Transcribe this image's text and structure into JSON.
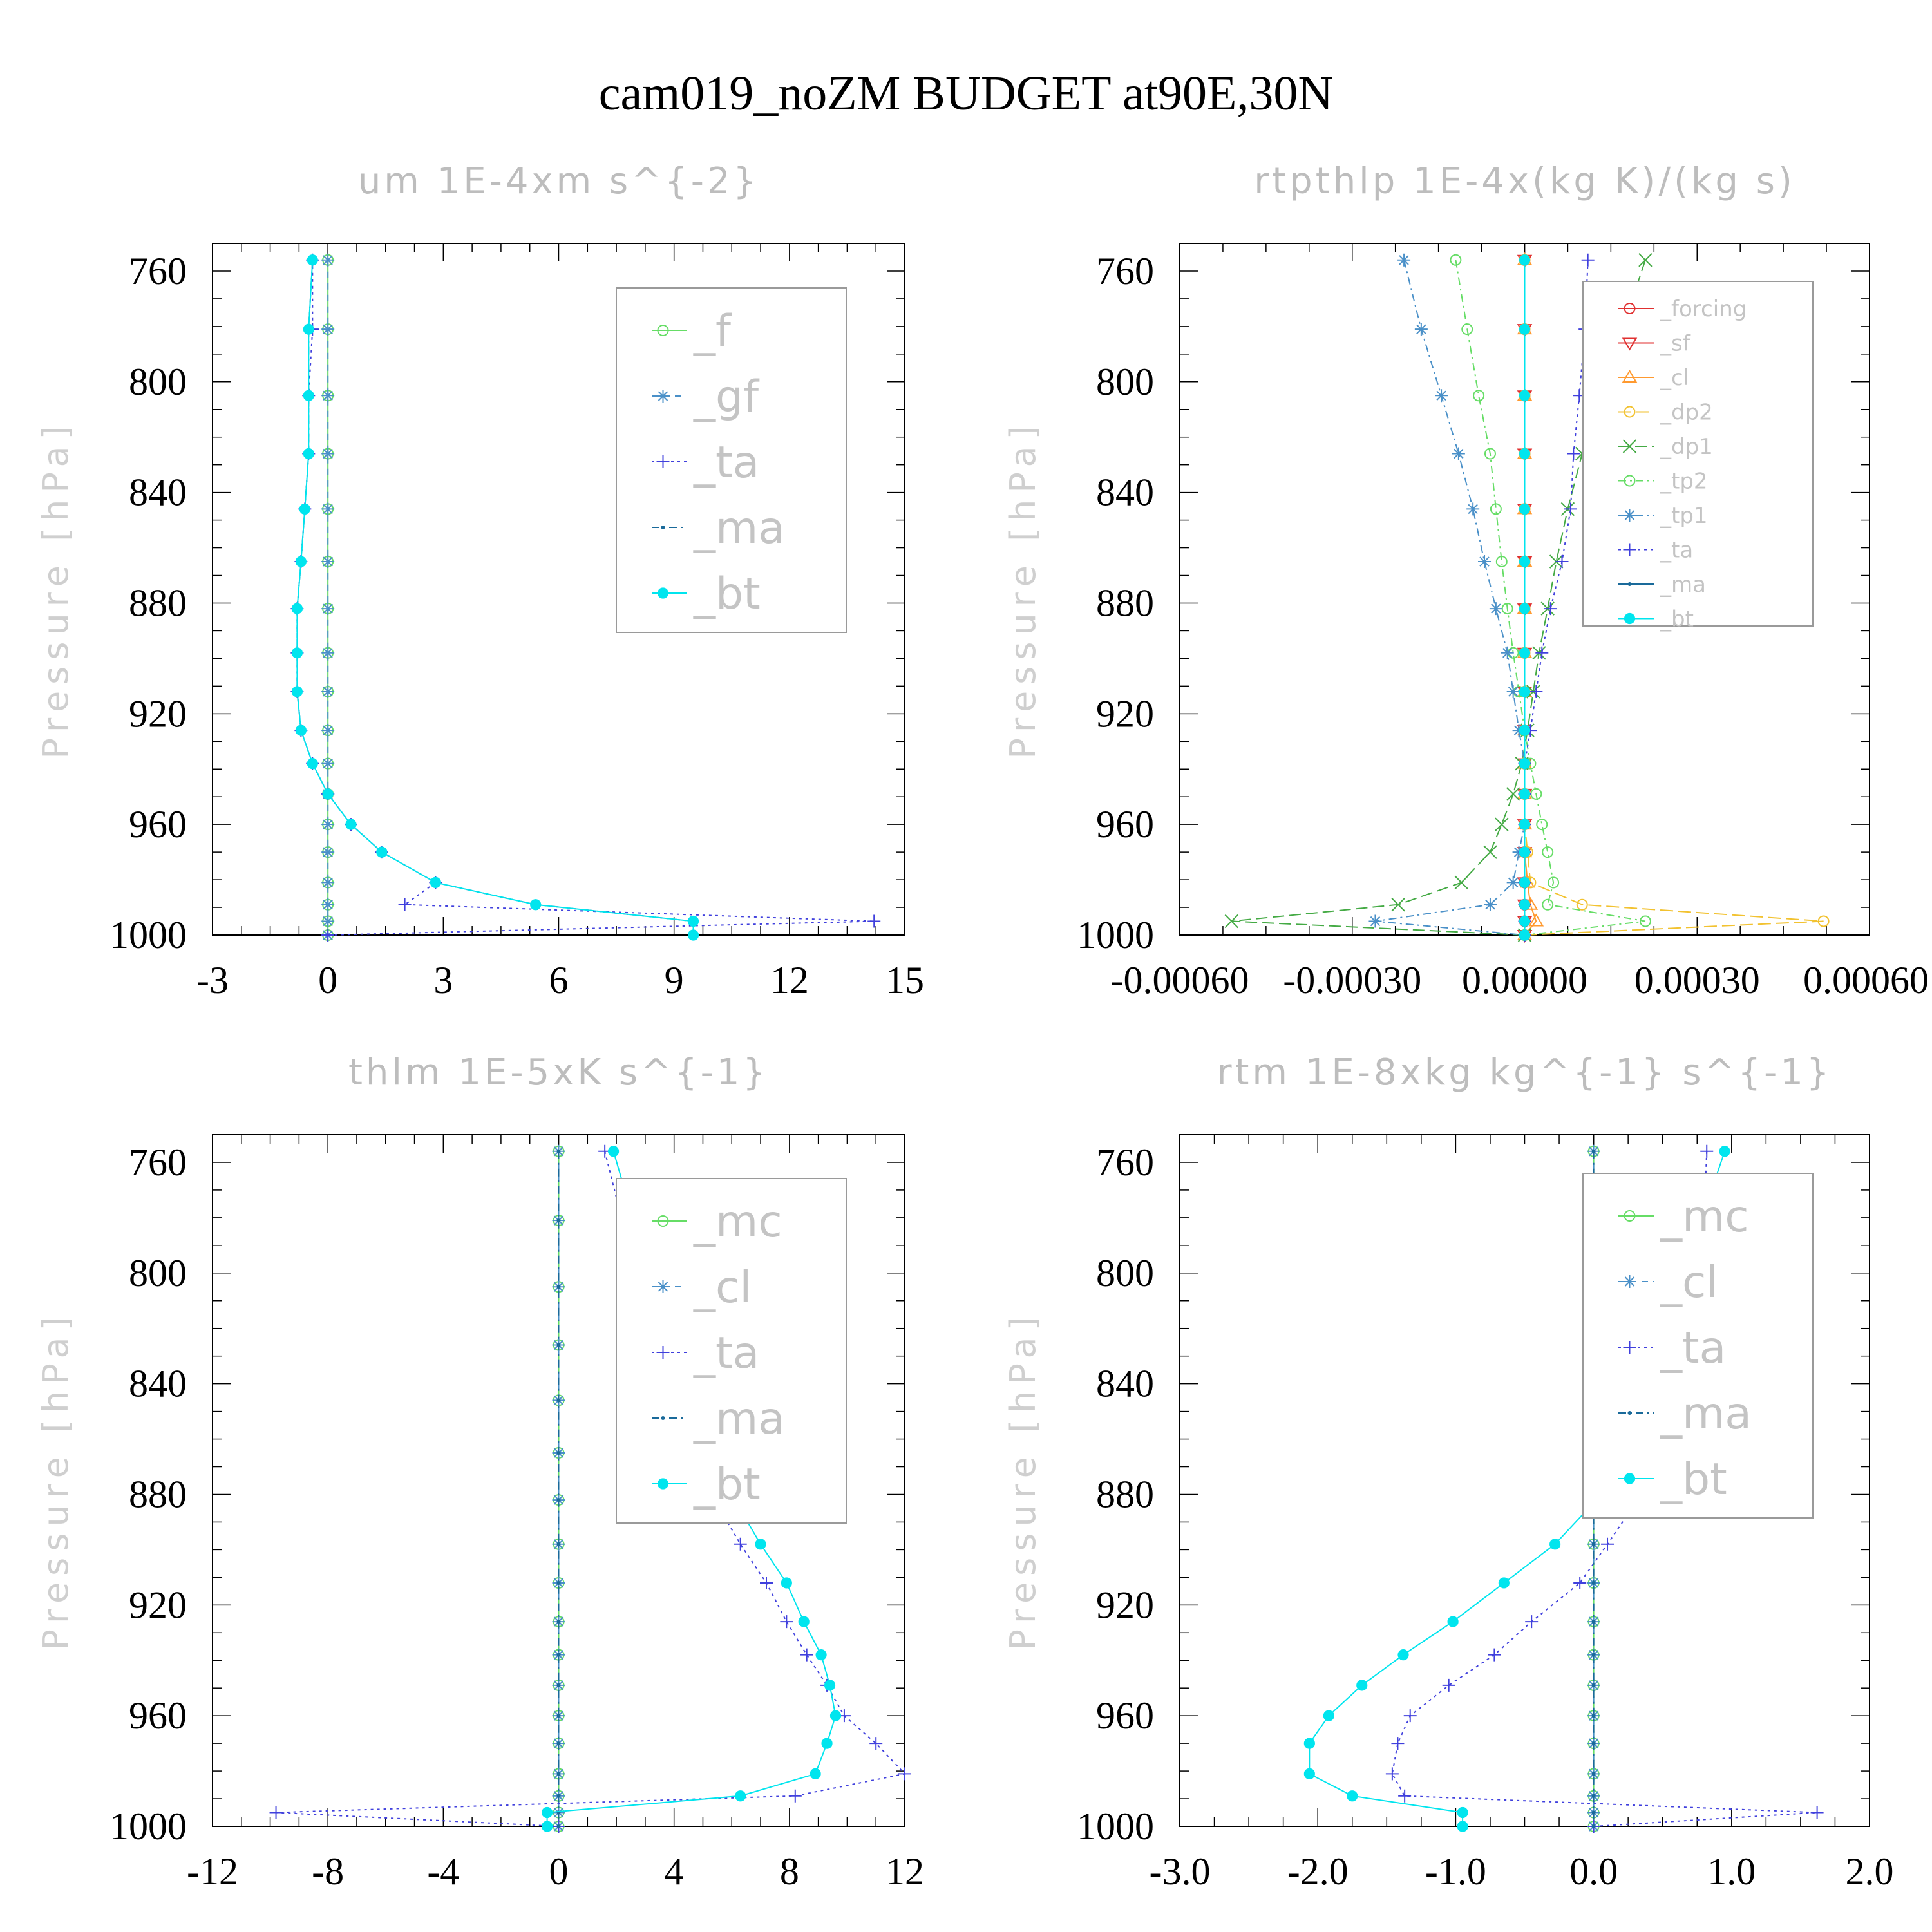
{
  "figure_title": "cam019_noZM  BUDGET at90E,30N",
  "chart_data": [
    {
      "type": "line",
      "title": "um   1E-4xm s^{-2}",
      "ylabel": "Pressure [hPa]",
      "xlabel": "",
      "xlim": [
        -3,
        15
      ],
      "xticks": [
        "-3",
        "0",
        "3",
        "6",
        "9",
        "12",
        "15"
      ],
      "ylim": [
        1000,
        750
      ],
      "yticks": [
        "760",
        "800",
        "840",
        "880",
        "920",
        "960",
        "1000"
      ],
      "grid": false,
      "legend_position": "top-right",
      "pressure": [
        756,
        781,
        805,
        826,
        846,
        865,
        882,
        898,
        912,
        926,
        938,
        949,
        960,
        970,
        981,
        989,
        995,
        1000
      ],
      "series": [
        {
          "name": "_f",
          "color": "#66dd66",
          "marker": "circle-open",
          "dash": "",
          "values": [
            0,
            0,
            0,
            0,
            0,
            0,
            0,
            0,
            0,
            0,
            0,
            0,
            0,
            0,
            0,
            0,
            0,
            0
          ]
        },
        {
          "name": "_gf",
          "color": "#4a90c8",
          "marker": "star",
          "dash": "10,8",
          "values": [
            0,
            0,
            0,
            0,
            0,
            0,
            0,
            0,
            0,
            0,
            0,
            0,
            0,
            0,
            0,
            0,
            0,
            0
          ]
        },
        {
          "name": "_ta",
          "color": "#4040dd",
          "marker": "plus",
          "dash": "4,6",
          "values": [
            -0.4,
            -0.4,
            -0.5,
            -0.5,
            -0.6,
            -0.7,
            -0.8,
            -0.8,
            -0.8,
            -0.7,
            -0.4,
            0,
            0.6,
            1.4,
            2.8,
            2.0,
            14.2,
            0
          ]
        },
        {
          "name": "_ma",
          "color": "#1a6a9a",
          "marker": "dot",
          "dash": "12,6,3,6",
          "values": [
            -0.4,
            -0.5,
            -0.5,
            -0.5,
            -0.6,
            -0.7,
            -0.8,
            -0.8,
            -0.8,
            -0.7,
            -0.4,
            0,
            0.6,
            1.4,
            2.8,
            5.4,
            9.5,
            9.5
          ]
        },
        {
          "name": "_bt",
          "color": "#00e5ee",
          "marker": "filled",
          "dash": "",
          "values": [
            -0.4,
            -0.5,
            -0.5,
            -0.5,
            -0.6,
            -0.7,
            -0.8,
            -0.8,
            -0.8,
            -0.7,
            -0.4,
            0,
            0.6,
            1.4,
            2.8,
            5.4,
            9.5,
            9.5
          ]
        }
      ]
    },
    {
      "type": "line",
      "title": "rtpthlp   1E-4x(kg K)/(kg s)",
      "ylabel": "Pressure [hPa]",
      "xlabel": "",
      "xlim": [
        -0.0006,
        0.0006
      ],
      "xticks": [
        "-0.00060",
        "-0.00030",
        "0.00000",
        "0.00030",
        "0.00060"
      ],
      "ylim": [
        1000,
        750
      ],
      "yticks": [
        "760",
        "800",
        "840",
        "880",
        "920",
        "960",
        "1000"
      ],
      "grid": false,
      "legend_position": "top-right",
      "pressure": [
        756,
        781,
        805,
        826,
        846,
        865,
        882,
        898,
        912,
        926,
        938,
        949,
        960,
        970,
        981,
        989,
        995,
        1000
      ],
      "series": [
        {
          "name": "_forcing",
          "color": "#e03030",
          "marker": "circle-open",
          "dash": "",
          "values": [
            0,
            0,
            0,
            0,
            0,
            0,
            0,
            0,
            0,
            0,
            0,
            0,
            0,
            0,
            0,
            0,
            0,
            0
          ]
        },
        {
          "name": "_sf",
          "color": "#e03030",
          "marker": "triangle-down",
          "dash": "",
          "values": [
            0,
            0,
            0,
            0,
            0,
            0,
            0,
            0,
            0,
            0,
            0,
            0,
            0,
            0,
            0,
            0,
            0,
            0
          ]
        },
        {
          "name": "_cl",
          "color": "#ff9a30",
          "marker": "triangle-up",
          "dash": "",
          "values": [
            0,
            0,
            0,
            0,
            0,
            0,
            0,
            0,
            0,
            0,
            0,
            0,
            0,
            0,
            5e-06,
            1e-05,
            2e-05,
            0
          ]
        },
        {
          "name": "_dp2",
          "color": "#f2c230",
          "marker": "circle-open",
          "dash": "20,8",
          "values": [
            0,
            0,
            0,
            0,
            0,
            0,
            0,
            0,
            0,
            0,
            0,
            0,
            0,
            5e-06,
            1e-05,
            0.0001,
            0.00052,
            0
          ]
        },
        {
          "name": "_dp1",
          "color": "#44aa44",
          "marker": "x",
          "dash": "18,8",
          "values": [
            0.00021,
            0.00017,
            0.00013,
            0.0001,
            7.5e-05,
            5.5e-05,
            4e-05,
            2.5e-05,
            1.5e-05,
            5e-06,
            -5e-06,
            -2e-05,
            -4e-05,
            -6e-05,
            -0.00011,
            -0.00022,
            -0.00051,
            0
          ]
        },
        {
          "name": "_tp2",
          "color": "#66dd66",
          "marker": "circle-open",
          "dash": "12,6,3,6",
          "values": [
            -0.00012,
            -0.0001,
            -8e-05,
            -6e-05,
            -5e-05,
            -4e-05,
            -3e-05,
            -2e-05,
            -1e-05,
            0,
            1e-05,
            2e-05,
            3e-05,
            4e-05,
            5e-05,
            4e-05,
            0.00021,
            0
          ]
        },
        {
          "name": "_tp1",
          "color": "#4a90c8",
          "marker": "star",
          "dash": "12,6,3,6",
          "values": [
            -0.00021,
            -0.00018,
            -0.000145,
            -0.000115,
            -9e-05,
            -7e-05,
            -5e-05,
            -3e-05,
            -2e-05,
            -1e-05,
            0,
            0,
            0,
            -1e-05,
            -2e-05,
            -6e-05,
            -0.00026,
            0
          ]
        },
        {
          "name": "_ta",
          "color": "#4040dd",
          "marker": "plus",
          "dash": "4,6",
          "values": [
            0.00011,
            0.000105,
            9.5e-05,
            8.5e-05,
            8e-05,
            6.5e-05,
            4.5e-05,
            3e-05,
            2e-05,
            1e-05,
            0,
            0,
            0,
            0,
            0,
            0,
            0,
            0
          ]
        },
        {
          "name": "_ma",
          "color": "#1a6a9a",
          "marker": "dot",
          "dash": "",
          "values": [
            0,
            0,
            0,
            0,
            0,
            0,
            0,
            0,
            0,
            0,
            0,
            0,
            0,
            0,
            0,
            0,
            0,
            0
          ]
        },
        {
          "name": "_bt",
          "color": "#00e5ee",
          "marker": "filled",
          "dash": "",
          "values": [
            0,
            0,
            0,
            0,
            0,
            0,
            0,
            0,
            0,
            0,
            0,
            0,
            0,
            0,
            0,
            0,
            0,
            0
          ]
        }
      ]
    },
    {
      "type": "line",
      "title": "thlm   1E-5xK s^{-1}",
      "ylabel": "Pressure [hPa]",
      "xlabel": "",
      "xlim": [
        -12,
        12
      ],
      "xticks": [
        "-12",
        "-8",
        "-4",
        "0",
        "4",
        "8",
        "12"
      ],
      "ylim": [
        1000,
        750
      ],
      "yticks": [
        "760",
        "800",
        "840",
        "880",
        "920",
        "960",
        "1000"
      ],
      "grid": false,
      "legend_position": "top-right",
      "pressure": [
        756,
        781,
        805,
        826,
        846,
        865,
        882,
        898,
        912,
        926,
        938,
        949,
        960,
        970,
        981,
        989,
        995,
        1000
      ],
      "series": [
        {
          "name": "_mc",
          "color": "#66dd66",
          "marker": "circle-open",
          "dash": "",
          "values": [
            0,
            0,
            0,
            0,
            0,
            0,
            0,
            0,
            0,
            0,
            0,
            0,
            0,
            0,
            0,
            0,
            0,
            0
          ]
        },
        {
          "name": "_cl",
          "color": "#4a90c8",
          "marker": "star",
          "dash": "10,8",
          "values": [
            0,
            0,
            0,
            0,
            0,
            0,
            0,
            0,
            0,
            0,
            0,
            0,
            0,
            0,
            0,
            0,
            0,
            0
          ]
        },
        {
          "name": "_ta",
          "color": "#4040dd",
          "marker": "plus",
          "dash": "4,6",
          "values": [
            1.6,
            2.2,
            2.8,
            3.3,
            3.9,
            4.6,
            5.4,
            6.3,
            7.2,
            7.9,
            8.6,
            9.3,
            9.9,
            11.0,
            12.0,
            8.2,
            -9.8,
            0
          ]
        },
        {
          "name": "_ma",
          "color": "#1a6a9a",
          "marker": "dot",
          "dash": "12,6,3,6",
          "values": [
            0,
            0,
            0,
            0,
            0,
            0,
            0,
            0,
            0,
            0,
            0,
            0,
            0,
            0,
            0,
            0,
            0,
            0
          ]
        },
        {
          "name": "_bt",
          "color": "#00e5ee",
          "marker": "filled",
          "dash": "",
          "values": [
            1.9,
            2.6,
            3.3,
            3.8,
            4.4,
            5.3,
            6.1,
            7.0,
            7.9,
            8.5,
            9.1,
            9.4,
            9.6,
            9.3,
            8.9,
            6.3,
            -0.4,
            -0.4
          ]
        }
      ]
    },
    {
      "type": "line",
      "title": "rtm   1E-8xkg kg^{-1} s^{-1}",
      "ylabel": "Pressure [hPa]",
      "xlabel": "",
      "xlim": [
        -3,
        2
      ],
      "xticks": [
        "-3.0",
        "-2.0",
        "-1.0",
        "0.0",
        "1.0",
        "2.0"
      ],
      "ylim": [
        1000,
        750
      ],
      "yticks": [
        "760",
        "800",
        "840",
        "880",
        "920",
        "960",
        "1000"
      ],
      "grid": false,
      "legend_position": "top-right",
      "pressure": [
        756,
        781,
        805,
        826,
        846,
        865,
        882,
        898,
        912,
        926,
        938,
        949,
        960,
        970,
        981,
        989,
        995,
        1000
      ],
      "series": [
        {
          "name": "_mc",
          "color": "#66dd66",
          "marker": "circle-open",
          "dash": "",
          "values": [
            0,
            0,
            0,
            0,
            0,
            0,
            0,
            0,
            0,
            0,
            0,
            0,
            0,
            0,
            0,
            0,
            0,
            0
          ]
        },
        {
          "name": "_cl",
          "color": "#4a90c8",
          "marker": "star",
          "dash": "10,8",
          "values": [
            0,
            0,
            0,
            0,
            0,
            0,
            0,
            0,
            0,
            0,
            0,
            0,
            0,
            0,
            0,
            0,
            0,
            0
          ]
        },
        {
          "name": "_ta",
          "color": "#4040dd",
          "marker": "plus",
          "dash": "4,6",
          "values": [
            0.82,
            0.8,
            0.77,
            0.72,
            0.62,
            0.52,
            0.32,
            0.1,
            -0.1,
            -0.45,
            -0.72,
            -1.05,
            -1.33,
            -1.42,
            -1.46,
            -1.37,
            1.62,
            0
          ]
        },
        {
          "name": "_ma",
          "color": "#1a6a9a",
          "marker": "dot",
          "dash": "12,6,3,6",
          "values": [
            0,
            0,
            0,
            0,
            0,
            0,
            0,
            0,
            0,
            0,
            0,
            0,
            0,
            0,
            0,
            0,
            0,
            0
          ]
        },
        {
          "name": "_bt",
          "color": "#00e5ee",
          "marker": "filled",
          "dash": "",
          "values": [
            0.95,
            0.78,
            0.65,
            0.52,
            0.4,
            0.2,
            0.02,
            -0.28,
            -0.65,
            -1.02,
            -1.38,
            -1.68,
            -1.92,
            -2.06,
            -2.06,
            -1.75,
            -0.95,
            -0.95
          ]
        }
      ]
    }
  ]
}
